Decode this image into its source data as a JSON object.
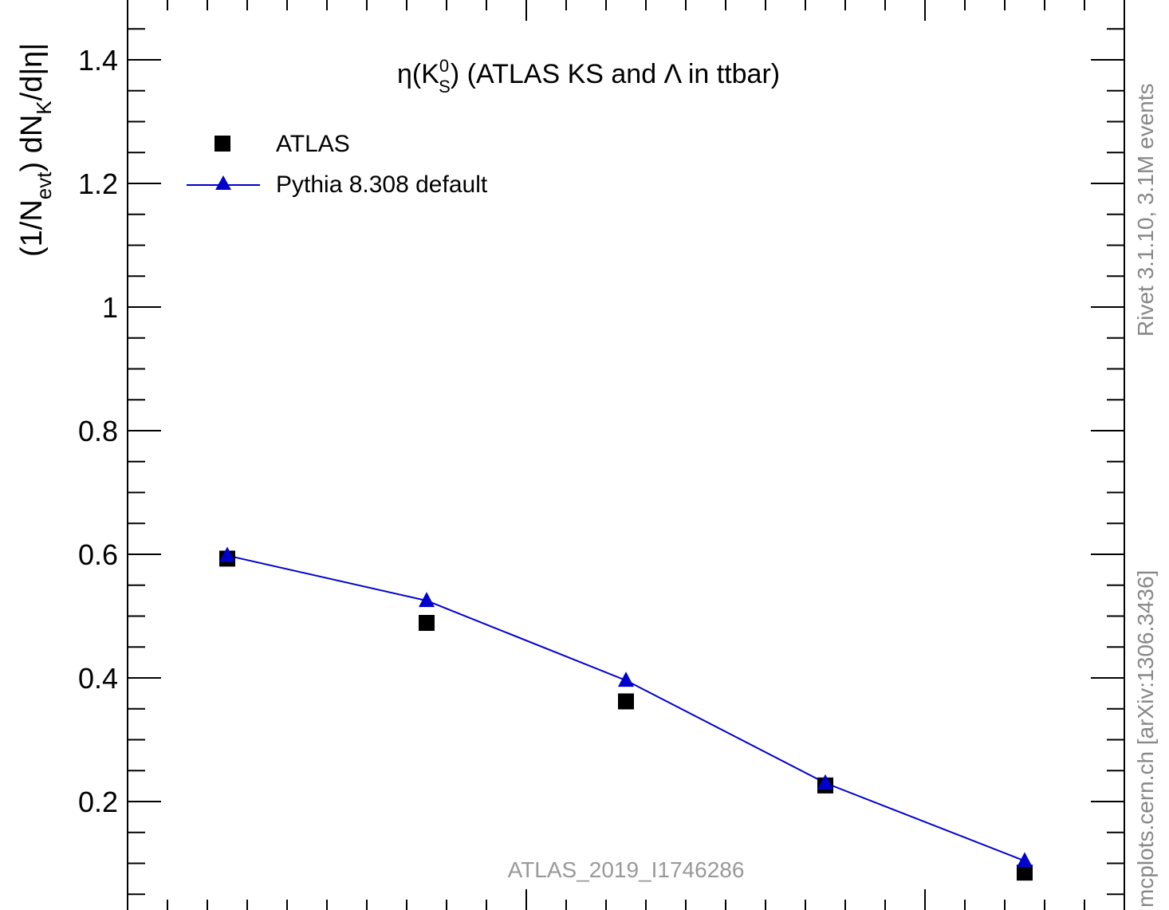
{
  "chart_data": {
    "type": "line",
    "title": "",
    "annotation": {
      "text_main": "η(K",
      "text_sup": "0",
      "text_sub": "S",
      "text_rest": ") (ATLAS KS and Λ in ttbar)"
    },
    "xlabel": "",
    "ylabel": {
      "part1": "(1/N",
      "sub1": "evt",
      "part2": ") dN",
      "sub2": "K",
      "part3": "/d|η|"
    },
    "ylim": [
      0.05,
      1.5
    ],
    "xlim": [
      0.0,
      2.5
    ],
    "y_ticks": [
      "0.2",
      "0.4",
      "0.6",
      "0.8",
      "1",
      "1.2",
      "1.4"
    ],
    "y_tick_values": [
      0.2,
      0.4,
      0.6,
      0.8,
      1.0,
      1.2,
      1.4
    ],
    "grid": false,
    "legend_position": "top-left",
    "series": [
      {
        "name": "ATLAS",
        "style": "markers",
        "marker": "square",
        "color": "#000000",
        "x": [
          0.25,
          0.75,
          1.25,
          1.75,
          2.25
        ],
        "values": [
          0.593,
          0.489,
          0.362,
          0.226,
          0.085
        ]
      },
      {
        "name": "Pythia 8.308 default",
        "style": "line+markers",
        "marker": "triangle",
        "color": "#0000cc",
        "x": [
          0.25,
          0.75,
          1.25,
          1.75,
          2.25
        ],
        "values": [
          0.598,
          0.525,
          0.396,
          0.23,
          0.104
        ]
      }
    ],
    "watermark": "ATLAS_2019_I1746286",
    "side_label_top": "Rivet 3.1.10,  3.1M events",
    "side_label_bottom": "mcplots.cern.ch [arXiv:1306.3436]"
  }
}
